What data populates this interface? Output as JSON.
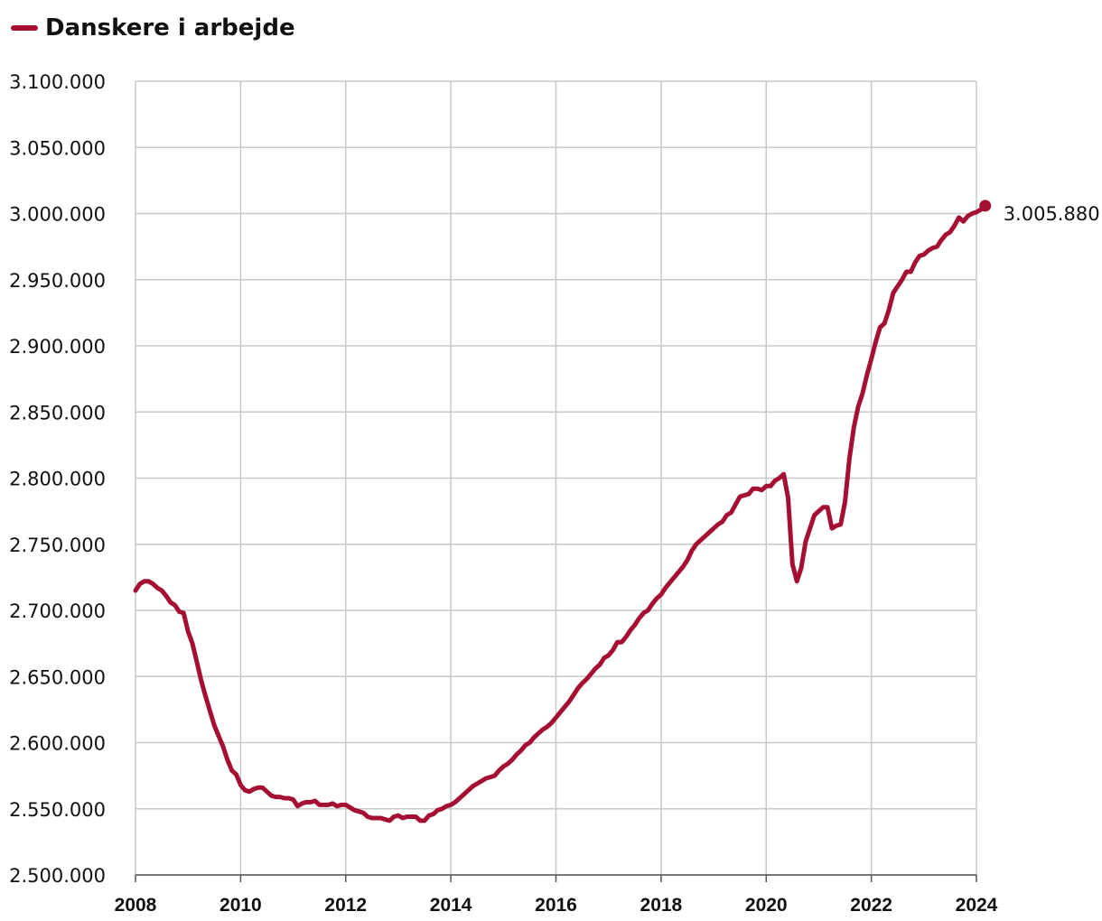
{
  "chart_data": {
    "type": "line",
    "title": "",
    "xlabel": "",
    "ylabel": "",
    "legend": "top-left",
    "grid": true,
    "ylim": [
      2500000,
      3100000
    ],
    "xlim": [
      2008.0,
      2024.0
    ],
    "y_ticks": [
      2500000,
      2550000,
      2600000,
      2650000,
      2700000,
      2750000,
      2800000,
      2850000,
      2900000,
      2950000,
      3000000,
      3050000,
      3100000
    ],
    "y_tick_labels": [
      "2.500.000",
      "2.550.000",
      "2.600.000",
      "2.650.000",
      "2.700.000",
      "2.750.000",
      "2.800.000",
      "2.850.000",
      "2.900.000",
      "2.950.000",
      "3.000.000",
      "3.050.000",
      "3.100.000"
    ],
    "x_ticks": [
      2008,
      2010,
      2012,
      2014,
      2016,
      2018,
      2020,
      2022,
      2024
    ],
    "x_tick_labels": [
      "2008",
      "2010",
      "2012",
      "2014",
      "2016",
      "2018",
      "2020",
      "2022",
      "2024"
    ],
    "end_label": "3.005.880",
    "series": [
      {
        "name": "Danskere i arbejde",
        "color": "#a50f32",
        "points": [
          [
            "2008-01",
            2715000
          ],
          [
            "2008-02",
            2720000
          ],
          [
            "2008-03",
            2722000
          ],
          [
            "2008-04",
            2722000
          ],
          [
            "2008-05",
            2720000
          ],
          [
            "2008-06",
            2717000
          ],
          [
            "2008-07",
            2715000
          ],
          [
            "2008-08",
            2711000
          ],
          [
            "2008-09",
            2706000
          ],
          [
            "2008-10",
            2704000
          ],
          [
            "2008-11",
            2699000
          ],
          [
            "2008-12",
            2698000
          ],
          [
            "2009-01",
            2684000
          ],
          [
            "2009-02",
            2675000
          ],
          [
            "2009-03",
            2661000
          ],
          [
            "2009-04",
            2647000
          ],
          [
            "2009-05",
            2635000
          ],
          [
            "2009-06",
            2624000
          ],
          [
            "2009-07",
            2613000
          ],
          [
            "2009-08",
            2605000
          ],
          [
            "2009-09",
            2597000
          ],
          [
            "2009-10",
            2587000
          ],
          [
            "2009-11",
            2579000
          ],
          [
            "2009-12",
            2576000
          ],
          [
            "2010-01",
            2568000
          ],
          [
            "2010-02",
            2564000
          ],
          [
            "2010-03",
            2563000
          ],
          [
            "2010-04",
            2565000
          ],
          [
            "2010-05",
            2566000
          ],
          [
            "2010-06",
            2566000
          ],
          [
            "2010-07",
            2563000
          ],
          [
            "2010-08",
            2560000
          ],
          [
            "2010-09",
            2559000
          ],
          [
            "2010-10",
            2559000
          ],
          [
            "2010-11",
            2558000
          ],
          [
            "2010-12",
            2558000
          ],
          [
            "2011-01",
            2557000
          ],
          [
            "2011-02",
            2552000
          ],
          [
            "2011-03",
            2554000
          ],
          [
            "2011-04",
            2555000
          ],
          [
            "2011-05",
            2555000
          ],
          [
            "2011-06",
            2556000
          ],
          [
            "2011-07",
            2553000
          ],
          [
            "2011-08",
            2553000
          ],
          [
            "2011-09",
            2553000
          ],
          [
            "2011-10",
            2554000
          ],
          [
            "2011-11",
            2552000
          ],
          [
            "2011-12",
            2553000
          ],
          [
            "2012-01",
            2553000
          ],
          [
            "2012-02",
            2551000
          ],
          [
            "2012-03",
            2549000
          ],
          [
            "2012-04",
            2548000
          ],
          [
            "2012-05",
            2547000
          ],
          [
            "2012-06",
            2544000
          ],
          [
            "2012-07",
            2543000
          ],
          [
            "2012-08",
            2543000
          ],
          [
            "2012-09",
            2543000
          ],
          [
            "2012-10",
            2542000
          ],
          [
            "2012-11",
            2541000
          ],
          [
            "2012-12",
            2544000
          ],
          [
            "2013-01",
            2545000
          ],
          [
            "2013-02",
            2543000
          ],
          [
            "2013-03",
            2544000
          ],
          [
            "2013-04",
            2544000
          ],
          [
            "2013-05",
            2544000
          ],
          [
            "2013-06",
            2541000
          ],
          [
            "2013-07",
            2541000
          ],
          [
            "2013-08",
            2545000
          ],
          [
            "2013-09",
            2546000
          ],
          [
            "2013-10",
            2549000
          ],
          [
            "2013-11",
            2550000
          ],
          [
            "2013-12",
            2552000
          ],
          [
            "2014-01",
            2553000
          ],
          [
            "2014-02",
            2555000
          ],
          [
            "2014-03",
            2558000
          ],
          [
            "2014-04",
            2561000
          ],
          [
            "2014-05",
            2564000
          ],
          [
            "2014-06",
            2567000
          ],
          [
            "2014-07",
            2569000
          ],
          [
            "2014-08",
            2571000
          ],
          [
            "2014-09",
            2573000
          ],
          [
            "2014-10",
            2574000
          ],
          [
            "2014-11",
            2575000
          ],
          [
            "2014-12",
            2579000
          ],
          [
            "2015-01",
            2582000
          ],
          [
            "2015-02",
            2584000
          ],
          [
            "2015-03",
            2587000
          ],
          [
            "2015-04",
            2591000
          ],
          [
            "2015-05",
            2594000
          ],
          [
            "2015-06",
            2598000
          ],
          [
            "2015-07",
            2600000
          ],
          [
            "2015-08",
            2604000
          ],
          [
            "2015-09",
            2607000
          ],
          [
            "2015-10",
            2610000
          ],
          [
            "2015-11",
            2612000
          ],
          [
            "2015-12",
            2615000
          ],
          [
            "2016-01",
            2619000
          ],
          [
            "2016-02",
            2623000
          ],
          [
            "2016-03",
            2627000
          ],
          [
            "2016-04",
            2631000
          ],
          [
            "2016-05",
            2636000
          ],
          [
            "2016-06",
            2641000
          ],
          [
            "2016-07",
            2645000
          ],
          [
            "2016-08",
            2648000
          ],
          [
            "2016-09",
            2652000
          ],
          [
            "2016-10",
            2656000
          ],
          [
            "2016-11",
            2659000
          ],
          [
            "2016-12",
            2664000
          ],
          [
            "2017-01",
            2666000
          ],
          [
            "2017-02",
            2670000
          ],
          [
            "2017-03",
            2676000
          ],
          [
            "2017-04",
            2676000
          ],
          [
            "2017-05",
            2680000
          ],
          [
            "2017-06",
            2685000
          ],
          [
            "2017-07",
            2689000
          ],
          [
            "2017-08",
            2694000
          ],
          [
            "2017-09",
            2698000
          ],
          [
            "2017-10",
            2700000
          ],
          [
            "2017-11",
            2705000
          ],
          [
            "2017-12",
            2709000
          ],
          [
            "2018-01",
            2712000
          ],
          [
            "2018-02",
            2717000
          ],
          [
            "2018-03",
            2721000
          ],
          [
            "2018-04",
            2725000
          ],
          [
            "2018-05",
            2729000
          ],
          [
            "2018-06",
            2733000
          ],
          [
            "2018-07",
            2738000
          ],
          [
            "2018-08",
            2745000
          ],
          [
            "2018-09",
            2750000
          ],
          [
            "2018-10",
            2753000
          ],
          [
            "2018-11",
            2756000
          ],
          [
            "2018-12",
            2759000
          ],
          [
            "2019-01",
            2762000
          ],
          [
            "2019-02",
            2765000
          ],
          [
            "2019-03",
            2767000
          ],
          [
            "2019-04",
            2772000
          ],
          [
            "2019-05",
            2774000
          ],
          [
            "2019-06",
            2780000
          ],
          [
            "2019-07",
            2786000
          ],
          [
            "2019-08",
            2787000
          ],
          [
            "2019-09",
            2788000
          ],
          [
            "2019-10",
            2792000
          ],
          [
            "2019-11",
            2792000
          ],
          [
            "2019-12",
            2791000
          ],
          [
            "2020-01",
            2794000
          ],
          [
            "2020-02",
            2794000
          ],
          [
            "2020-03",
            2798000
          ],
          [
            "2020-04",
            2800000
          ],
          [
            "2020-05",
            2803000
          ],
          [
            "2020-06",
            2785000
          ],
          [
            "2020-07",
            2735000
          ],
          [
            "2020-08",
            2722000
          ],
          [
            "2020-09",
            2732000
          ],
          [
            "2020-10",
            2752000
          ],
          [
            "2020-11",
            2762000
          ],
          [
            "2020-12",
            2772000
          ],
          [
            "2021-01",
            2775000
          ],
          [
            "2021-02",
            2778000
          ],
          [
            "2021-03",
            2778000
          ],
          [
            "2021-04",
            2762000
          ],
          [
            "2021-05",
            2764000
          ],
          [
            "2021-06",
            2765000
          ],
          [
            "2021-07",
            2782000
          ],
          [
            "2021-08",
            2815000
          ],
          [
            "2021-09",
            2838000
          ],
          [
            "2021-10",
            2854000
          ],
          [
            "2021-11",
            2864000
          ],
          [
            "2021-12",
            2878000
          ],
          [
            "2022-01",
            2890000
          ],
          [
            "2022-02",
            2903000
          ],
          [
            "2022-03",
            2914000
          ],
          [
            "2022-04",
            2917000
          ],
          [
            "2022-05",
            2927000
          ],
          [
            "2022-06",
            2940000
          ],
          [
            "2022-07",
            2945000
          ],
          [
            "2022-08",
            2950000
          ],
          [
            "2022-09",
            2956000
          ],
          [
            "2022-10",
            2956000
          ],
          [
            "2022-11",
            2963000
          ],
          [
            "2022-12",
            2968000
          ],
          [
            "2023-01",
            2969000
          ],
          [
            "2023-02",
            2972000
          ],
          [
            "2023-03",
            2974000
          ],
          [
            "2023-04",
            2975000
          ],
          [
            "2023-05",
            2980000
          ],
          [
            "2023-06",
            2984000
          ],
          [
            "2023-07",
            2986000
          ],
          [
            "2023-08",
            2991000
          ],
          [
            "2023-09",
            2997000
          ],
          [
            "2023-10",
            2994000
          ],
          [
            "2023-11",
            2998000
          ],
          [
            "2023-12",
            3000000
          ],
          [
            "2024-01",
            3001000
          ],
          [
            "2024-02",
            3003000
          ],
          [
            "2024-03",
            3005880
          ]
        ]
      }
    ]
  }
}
